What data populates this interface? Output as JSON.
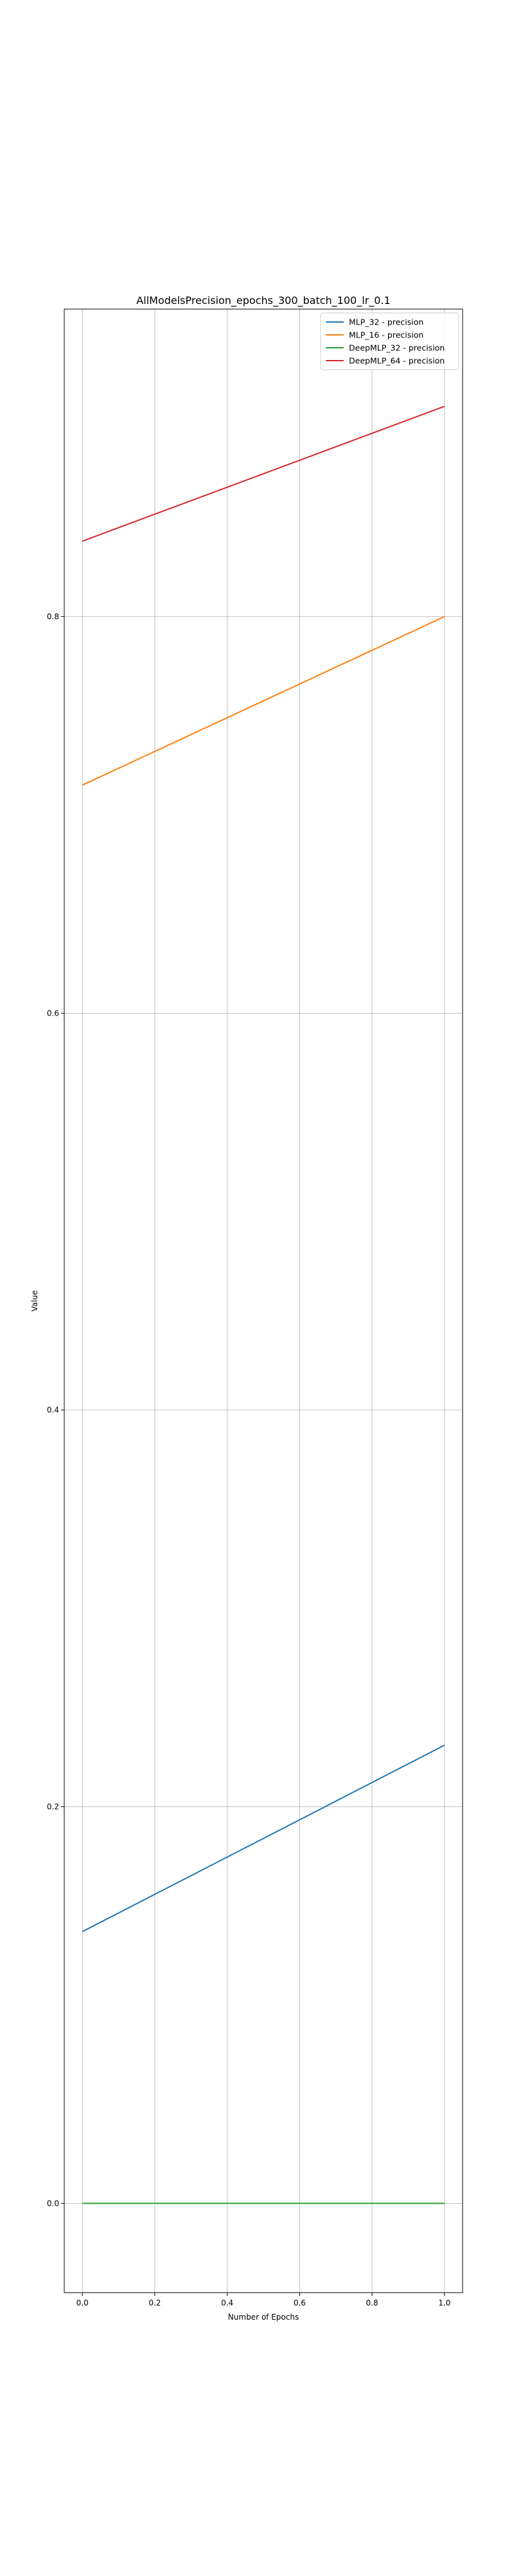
{
  "chart_data": {
    "type": "line",
    "title": "AllModelsPrecision_epochs_300_batch_100_lr_0.1",
    "xlabel": "Number of Epochs",
    "ylabel": "Value",
    "x": [
      0.0,
      1.0
    ],
    "xlim": [
      -0.05,
      1.05
    ],
    "ylim": [
      -0.045,
      0.955
    ],
    "xticks": [
      "0.0",
      "0.2",
      "0.4",
      "0.6",
      "0.8",
      "1.0"
    ],
    "yticks": [
      "0.0",
      "0.2",
      "0.4",
      "0.6",
      "0.8"
    ],
    "grid": true,
    "legend_position": "top-right",
    "series": [
      {
        "name": "MLP_32 - precision",
        "color": "#1f77b4",
        "values": [
          0.137,
          0.231
        ]
      },
      {
        "name": "MLP_16 - precision",
        "color": "#ff7f0e",
        "values": [
          0.715,
          0.8
        ]
      },
      {
        "name": "DeepMLP_32 - precision",
        "color": "#2ca02c",
        "values": [
          0.0,
          0.0
        ]
      },
      {
        "name": "DeepMLP_64 - precision",
        "color": "#d62728",
        "values": [
          0.838,
          0.906
        ]
      }
    ]
  }
}
